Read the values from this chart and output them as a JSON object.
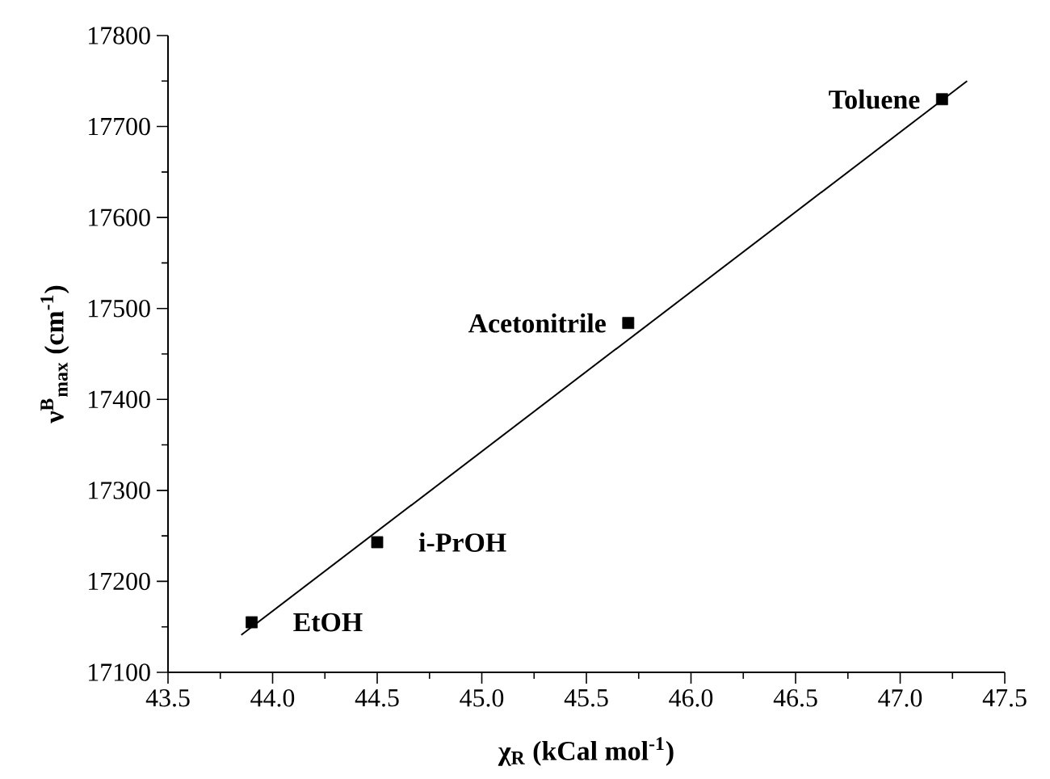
{
  "chart_data": {
    "type": "scatter",
    "xlabel": "**χ$_{R}$ (kCal mol$^{-1}$)**",
    "ylabel": "**ν$^{B}$$_{max}$ (cm$^{-1}$)**",
    "xlim": [
      43.5,
      47.5
    ],
    "ylim": [
      17100,
      17800
    ],
    "xticks": [
      {
        "value": 43.5,
        "label": "43.5"
      },
      {
        "value": 44.0,
        "label": "44.0"
      },
      {
        "value": 44.5,
        "label": "44.5"
      },
      {
        "value": 45.0,
        "label": "45.0"
      },
      {
        "value": 45.5,
        "label": "45.5"
      },
      {
        "value": 46.0,
        "label": "46.0"
      },
      {
        "value": 46.5,
        "label": "46.5"
      },
      {
        "value": 47.0,
        "label": "47.0"
      },
      {
        "value": 47.5,
        "label": "47.5"
      }
    ],
    "yticks": [
      17100,
      17200,
      17300,
      17400,
      17500,
      17600,
      17700,
      17800
    ],
    "marker": "square",
    "series": [
      {
        "color": "#000000",
        "x": [
          43.9,
          44.5,
          45.7,
          47.2
        ],
        "values": [
          17155,
          17243,
          17484,
          17730
        ]
      },
      {
        "type": "line",
        "color": "#000000",
        "x": [
          43.85,
          47.32
        ],
        "values": [
          17141,
          17750
        ],
        "marker": "none"
      }
    ],
    "annotations": [
      {
        "text": "**EtOH**",
        "x": 43.9,
        "y": 17155
      },
      {
        "text": "**i-PrOH**",
        "x": 44.5,
        "y": 17243
      },
      {
        "text": "**Acetonitrile**",
        "x": 45.7,
        "y": 17484
      },
      {
        "text": "**Toluene**",
        "x": 47.2,
        "y": 17730
      }
    ]
  }
}
